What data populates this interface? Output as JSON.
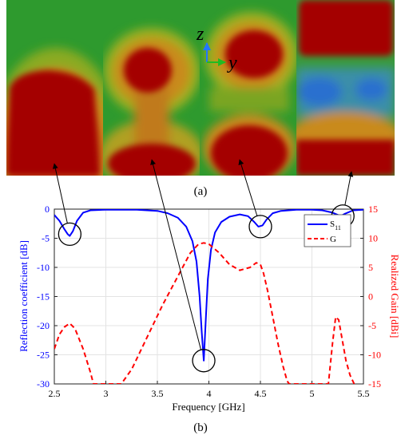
{
  "captions": {
    "top": "(a)",
    "bottom": "(b)"
  },
  "axes_triad": {
    "z": "z",
    "y": "y"
  },
  "field_maps": [
    {
      "id": "map-1",
      "marker_x": 2.65,
      "marker_y": -4.3
    },
    {
      "id": "map-2",
      "marker_x": 3.95,
      "marker_y": -26.0
    },
    {
      "id": "map-3",
      "marker_x": 4.5,
      "marker_y": -3.0
    },
    {
      "id": "map-4",
      "marker_x": 5.3,
      "marker_y": -1.2
    }
  ],
  "colors": {
    "s11": "#0000ff",
    "gain": "#ff0000",
    "grid": "#e3e3e3"
  },
  "chart_data": {
    "type": "line",
    "xlabel": "Frequency [GHz]",
    "ylabel": "Reflection coefficient [dB]",
    "y2label": "Realized Gain [dBi]",
    "xlim": [
      2.5,
      5.5
    ],
    "ylim": [
      -30,
      0
    ],
    "y2lim": [
      -15,
      15
    ],
    "xticks": [
      "2.5",
      "3",
      "3.5",
      "4",
      "4.5",
      "5",
      "5.5"
    ],
    "yticks": [
      "0",
      "-5",
      "-10",
      "-15",
      "-20",
      "-25",
      "-30"
    ],
    "y2ticks": [
      "15",
      "10",
      "5",
      "0",
      "-5",
      "-10",
      "-15"
    ],
    "grid": true,
    "legend_position": "top-right",
    "series": [
      {
        "name": "S",
        "name_sub": "11",
        "axis": "left",
        "style": "solid",
        "x": [
          2.5,
          2.55,
          2.6,
          2.63,
          2.65,
          2.68,
          2.72,
          2.78,
          2.85,
          3.0,
          3.3,
          3.5,
          3.6,
          3.7,
          3.78,
          3.84,
          3.88,
          3.91,
          3.93,
          3.95,
          3.97,
          3.99,
          4.02,
          4.06,
          4.12,
          4.2,
          4.3,
          4.38,
          4.44,
          4.48,
          4.52,
          4.56,
          4.62,
          4.7,
          4.85,
          5.0,
          5.1,
          5.2,
          5.28,
          5.32,
          5.4,
          5.5
        ],
        "y": [
          -1.0,
          -2.0,
          -3.5,
          -4.3,
          -4.6,
          -3.8,
          -2.0,
          -0.6,
          -0.2,
          -0.1,
          -0.1,
          -0.3,
          -0.7,
          -1.5,
          -3.0,
          -5.5,
          -9.0,
          -15.0,
          -21.0,
          -26.0,
          -19.0,
          -12.0,
          -7.0,
          -4.0,
          -2.2,
          -1.3,
          -0.9,
          -1.2,
          -2.2,
          -3.0,
          -2.8,
          -1.8,
          -0.7,
          -0.3,
          -0.1,
          -0.1,
          -0.2,
          -0.6,
          -1.2,
          -0.8,
          -0.2,
          -0.1
        ]
      },
      {
        "name": "G",
        "axis": "right",
        "style": "dashed",
        "x": [
          2.5,
          2.55,
          2.6,
          2.65,
          2.7,
          2.78,
          2.85,
          2.88,
          3.15,
          3.25,
          3.4,
          3.55,
          3.7,
          3.82,
          3.9,
          3.95,
          4.0,
          4.1,
          4.2,
          4.3,
          4.4,
          4.46,
          4.5,
          4.53,
          4.57,
          4.62,
          4.67,
          4.72,
          4.76,
          4.78,
          5.16,
          5.2,
          5.23,
          5.26,
          5.3,
          5.33,
          5.37,
          5.41
        ],
        "y": [
          -9.0,
          -6.5,
          -5.2,
          -4.6,
          -5.5,
          -9.0,
          -13.0,
          -15.0,
          -15.0,
          -12.5,
          -7.0,
          -1.5,
          3.5,
          7.5,
          9.0,
          9.2,
          9.0,
          7.5,
          5.5,
          4.5,
          5.0,
          5.8,
          5.5,
          4.0,
          1.0,
          -3.5,
          -8.0,
          -12.0,
          -14.5,
          -15.0,
          -15.0,
          -8.0,
          -3.5,
          -4.0,
          -8.0,
          -11.0,
          -13.5,
          -15.0
        ]
      }
    ]
  }
}
